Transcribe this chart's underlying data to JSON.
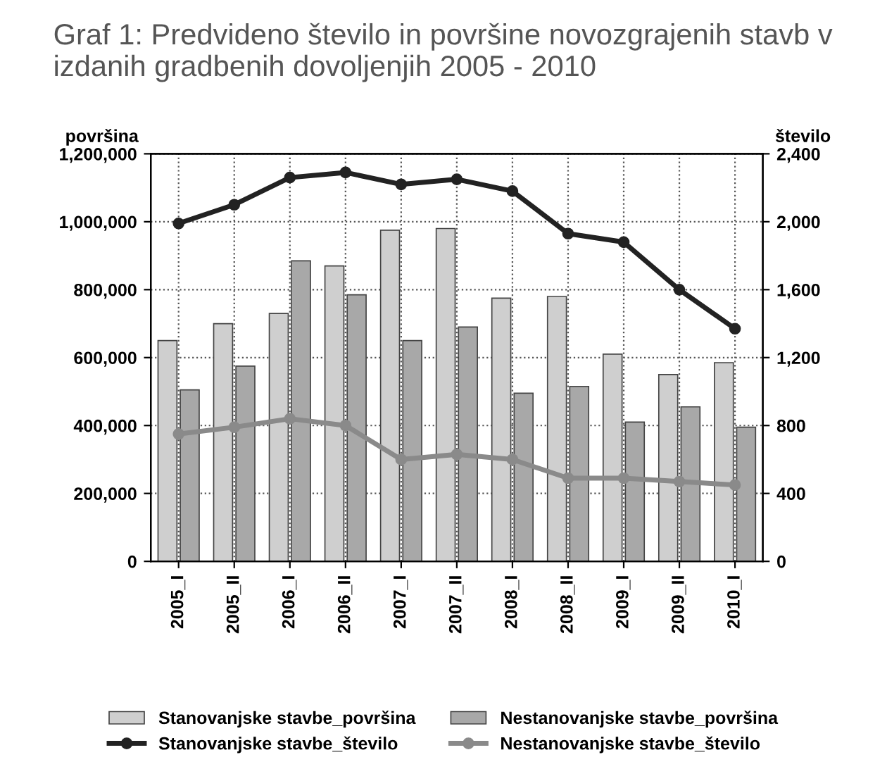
{
  "chart_data": {
    "type": "bar",
    "title": "Graf 1: Predvideno število in površine novozgrajenih stavb v\nizdanih gradbenih dovoljenjih 2005 - 2010",
    "ylabel": "površina",
    "y2label": "število",
    "categories": [
      "2005_I",
      "2005_II",
      "2006_I",
      "2006_II",
      "2007_I",
      "2007_II",
      "2008_I",
      "2008_II",
      "2009_I",
      "2009_II",
      "2010_I"
    ],
    "series": [
      {
        "name": "Stanovanjske stavbe_površina",
        "color": "#cfcfcf",
        "values": [
          650000,
          700000,
          730000,
          870000,
          975000,
          980000,
          775000,
          780000,
          610000,
          550000,
          585000
        ]
      },
      {
        "name": "Nestanovanjske stavbe_površina",
        "color": "#a8a8a8",
        "values": [
          505000,
          575000,
          885000,
          785000,
          650000,
          690000,
          495000,
          515000,
          410000,
          455000,
          395000
        ]
      },
      {
        "name": "Stanovanjske stavbe_število",
        "type": "line",
        "axis": "y2",
        "color": "#222222",
        "values": [
          1990,
          2100,
          2260,
          2290,
          2220,
          2250,
          2180,
          1930,
          1880,
          1600,
          1370
        ]
      },
      {
        "name": "Nestanovanjske stavbe_število",
        "type": "line",
        "axis": "y2",
        "color": "#8a8a8a",
        "values": [
          750,
          790,
          840,
          800,
          600,
          630,
          600,
          490,
          490,
          470,
          450
        ]
      }
    ],
    "ylim": [
      0,
      1200000
    ],
    "yticks": [
      0,
      {
        "value": 200000,
        "label": "200,000"
      },
      {
        "value": 400000,
        "label": "400,000"
      },
      {
        "value": 600000,
        "label": "600,000"
      },
      {
        "value": 800000,
        "label": "800,000"
      },
      {
        "value": 1000000,
        "label": "1,000,000"
      },
      {
        "value": 1200000,
        "label": "1,200,000"
      }
    ],
    "y2lim": [
      0,
      2400
    ],
    "y2ticks": [
      0,
      400,
      800,
      {
        "value": 1200,
        "label": "1,200"
      },
      {
        "value": 1600,
        "label": "1,600"
      },
      {
        "value": 2000,
        "label": "2,000"
      },
      {
        "value": 2400,
        "label": "2,400"
      }
    ],
    "grid": true,
    "legend": "bottom",
    "marker": "circle",
    "line_style": "solid"
  }
}
